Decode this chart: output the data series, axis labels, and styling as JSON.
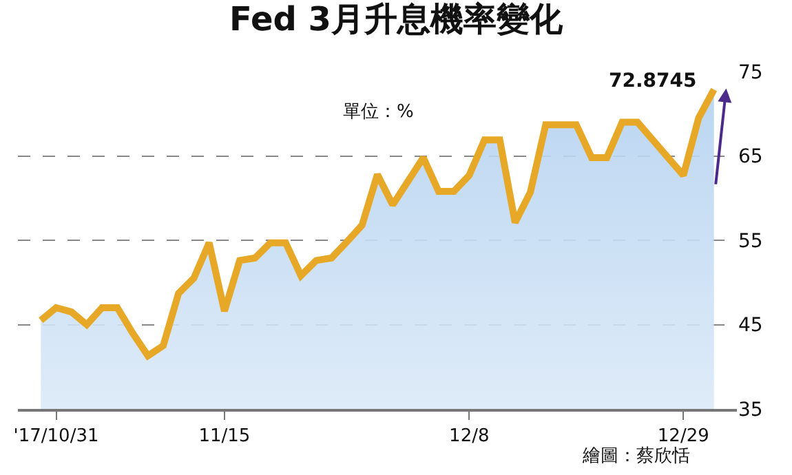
{
  "chart_data": {
    "type": "area",
    "title": "Fed 3月升息機率變化",
    "categories": [
      null,
      "'17/10/31",
      null,
      null,
      null,
      null,
      null,
      null,
      null,
      null,
      null,
      null,
      "11/15",
      null,
      null,
      null,
      null,
      null,
      null,
      null,
      null,
      null,
      null,
      null,
      null,
      null,
      null,
      null,
      "12/8",
      null,
      null,
      null,
      null,
      null,
      null,
      null,
      null,
      null,
      null,
      null,
      null,
      null,
      "12/29",
      null,
      null
    ],
    "series": [
      {
        "color": "#e6a826",
        "values": [
          45.5,
          47.0,
          46.5,
          45.0,
          47.0,
          47.0,
          44.0,
          41.3,
          42.5,
          48.7,
          50.5,
          54.7,
          46.6,
          52.6,
          52.9,
          54.7,
          54.7,
          50.8,
          52.6,
          52.9,
          54.8,
          56.8,
          62.8,
          59.2,
          62.0,
          64.8,
          60.8,
          60.8,
          62.7,
          66.9,
          66.9,
          57.1,
          60.7,
          68.7,
          68.7,
          68.7,
          64.8,
          64.8,
          69.0,
          69.0,
          66.9,
          64.8,
          62.7,
          69.5,
          72.8745
        ],
        "value_labels": [
          null,
          null,
          null,
          null,
          null,
          null,
          null,
          null,
          null,
          null,
          null,
          null,
          null,
          null,
          null,
          null,
          null,
          null,
          null,
          null,
          null,
          null,
          null,
          null,
          null,
          null,
          null,
          null,
          null,
          null,
          null,
          null,
          null,
          null,
          null,
          null,
          null,
          null,
          null,
          null,
          null,
          null,
          null,
          null,
          "72.8745"
        ]
      }
    ],
    "ylim": [
      35,
      75
    ],
    "yticks": [
      35,
      45,
      55,
      65,
      75
    ],
    "grid": "y",
    "line_style": "solid",
    "annotations": [
      "單位：%",
      "繪圖：蔡欣恬"
    ]
  }
}
